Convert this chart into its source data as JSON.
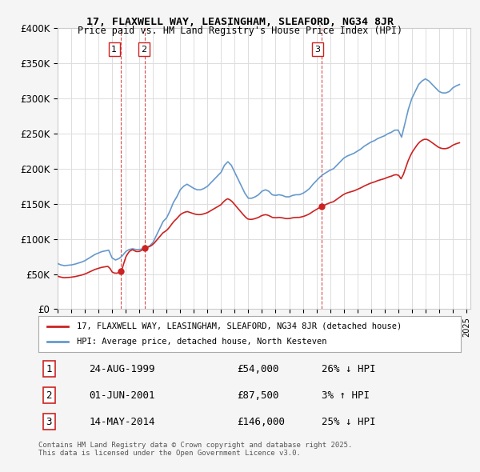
{
  "title_line1": "17, FLAXWELL WAY, LEASINGHAM, SLEAFORD, NG34 8JR",
  "title_line2": "Price paid vs. HM Land Registry's House Price Index (HPI)",
  "ylabel": "",
  "yticks": [
    0,
    50000,
    100000,
    150000,
    200000,
    250000,
    300000,
    350000,
    400000
  ],
  "ytick_labels": [
    "£0",
    "£50K",
    "£100K",
    "£150K",
    "£200K",
    "£250K",
    "£300K",
    "£350K",
    "£400K"
  ],
  "hpi_color": "#6699cc",
  "price_color": "#cc2222",
  "vline_color": "#cc2222",
  "background_color": "#f5f5f5",
  "plot_bg_color": "#ffffff",
  "grid_color": "#dddddd",
  "sale_dates": [
    "1999-08-24",
    "2001-06-01",
    "2014-05-14"
  ],
  "sale_prices": [
    54000,
    87500,
    146000
  ],
  "sale_labels": [
    "1",
    "2",
    "3"
  ],
  "legend_label_price": "17, FLAXWELL WAY, LEASINGHAM, SLEAFORD, NG34 8JR (detached house)",
  "legend_label_hpi": "HPI: Average price, detached house, North Kesteven",
  "table_entries": [
    [
      "1",
      "24-AUG-1999",
      "£54,000",
      "26% ↓ HPI"
    ],
    [
      "2",
      "01-JUN-2001",
      "£87,500",
      "3% ↑ HPI"
    ],
    [
      "3",
      "14-MAY-2014",
      "£146,000",
      "25% ↓ HPI"
    ]
  ],
  "footnote": "Contains HM Land Registry data © Crown copyright and database right 2025.\nThis data is licensed under the Open Government Licence v3.0.",
  "hpi_data": {
    "dates": [
      1995.0,
      1995.25,
      1995.5,
      1995.75,
      1996.0,
      1996.25,
      1996.5,
      1996.75,
      1997.0,
      1997.25,
      1997.5,
      1997.75,
      1998.0,
      1998.25,
      1998.5,
      1998.75,
      1999.0,
      1999.25,
      1999.5,
      1999.75,
      2000.0,
      2000.25,
      2000.5,
      2000.75,
      2001.0,
      2001.25,
      2001.5,
      2001.75,
      2002.0,
      2002.25,
      2002.5,
      2002.75,
      2003.0,
      2003.25,
      2003.5,
      2003.75,
      2004.0,
      2004.25,
      2004.5,
      2004.75,
      2005.0,
      2005.25,
      2005.5,
      2005.75,
      2006.0,
      2006.25,
      2006.5,
      2006.75,
      2007.0,
      2007.25,
      2007.5,
      2007.75,
      2008.0,
      2008.25,
      2008.5,
      2008.75,
      2009.0,
      2009.25,
      2009.5,
      2009.75,
      2010.0,
      2010.25,
      2010.5,
      2010.75,
      2011.0,
      2011.25,
      2011.5,
      2011.75,
      2012.0,
      2012.25,
      2012.5,
      2012.75,
      2013.0,
      2013.25,
      2013.5,
      2013.75,
      2014.0,
      2014.25,
      2014.5,
      2014.75,
      2015.0,
      2015.25,
      2015.5,
      2015.75,
      2016.0,
      2016.25,
      2016.5,
      2016.75,
      2017.0,
      2017.25,
      2017.5,
      2017.75,
      2018.0,
      2018.25,
      2018.5,
      2018.75,
      2019.0,
      2019.25,
      2019.5,
      2019.75,
      2020.0,
      2020.25,
      2020.5,
      2020.75,
      2021.0,
      2021.25,
      2021.5,
      2021.75,
      2022.0,
      2022.25,
      2022.5,
      2022.75,
      2023.0,
      2023.25,
      2023.5,
      2023.75,
      2024.0,
      2024.25,
      2024.5
    ],
    "values": [
      65000,
      63000,
      62000,
      62500,
      63000,
      64000,
      65500,
      67000,
      69000,
      72000,
      75000,
      78000,
      80000,
      82000,
      83000,
      84000,
      73000,
      70000,
      72000,
      76000,
      82000,
      85000,
      86000,
      85000,
      85000,
      86000,
      87500,
      90000,
      95000,
      105000,
      115000,
      125000,
      130000,
      140000,
      152000,
      160000,
      170000,
      175000,
      178000,
      175000,
      172000,
      170000,
      170000,
      172000,
      175000,
      180000,
      185000,
      190000,
      195000,
      205000,
      210000,
      205000,
      195000,
      185000,
      175000,
      165000,
      158000,
      158000,
      160000,
      163000,
      168000,
      170000,
      168000,
      163000,
      162000,
      163000,
      162000,
      160000,
      160000,
      162000,
      163000,
      163000,
      165000,
      168000,
      172000,
      178000,
      183000,
      188000,
      192000,
      195000,
      198000,
      200000,
      205000,
      210000,
      215000,
      218000,
      220000,
      222000,
      225000,
      228000,
      232000,
      235000,
      238000,
      240000,
      243000,
      245000,
      247000,
      250000,
      252000,
      255000,
      255000,
      245000,
      265000,
      285000,
      300000,
      310000,
      320000,
      325000,
      328000,
      325000,
      320000,
      315000,
      310000,
      308000,
      308000,
      310000,
      315000,
      318000,
      320000
    ]
  },
  "price_line_data": {
    "dates": [
      1995.0,
      1999.65,
      2001.42,
      2014.37,
      2025.0
    ],
    "values": [
      47000,
      54000,
      87500,
      146000,
      237000
    ]
  }
}
